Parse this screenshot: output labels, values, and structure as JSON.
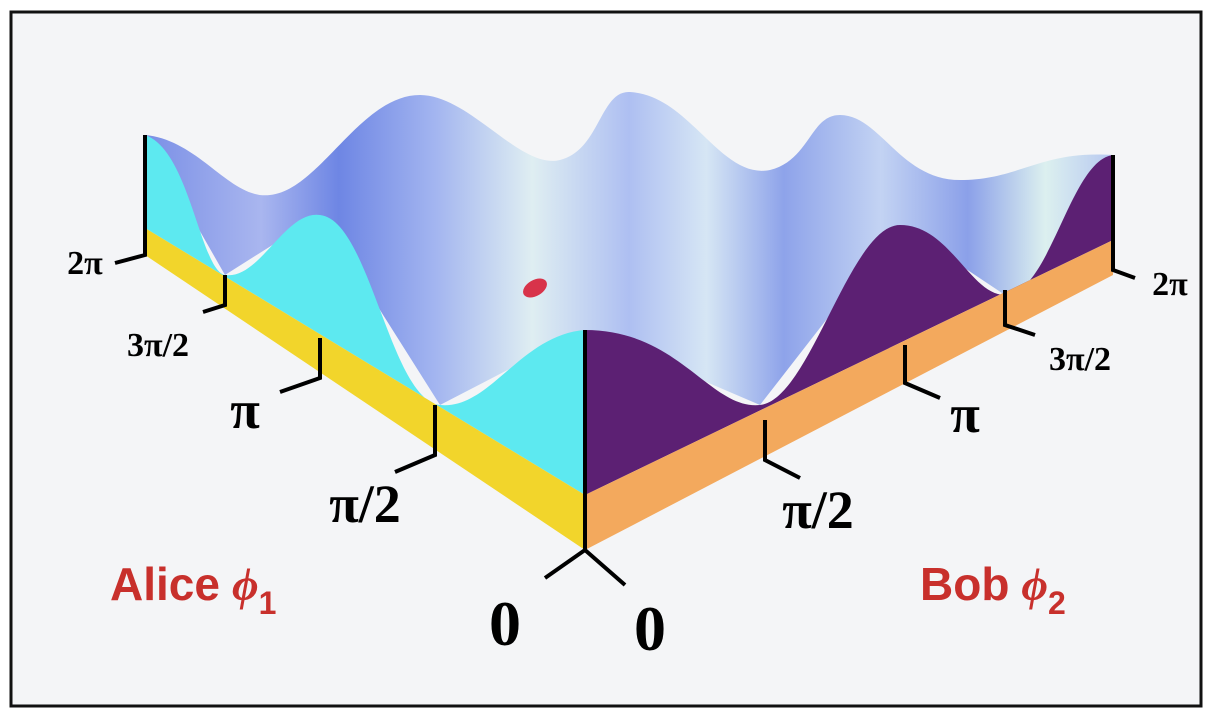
{
  "left_axis": {
    "name": "Alice",
    "symbol": "ϕ",
    "subscript": "1",
    "ticks": [
      "0",
      "π/2",
      "π",
      "3π/2",
      "2π"
    ]
  },
  "right_axis": {
    "name": "Bob",
    "symbol": "ϕ",
    "subscript": "2",
    "ticks": [
      "0",
      "π/2",
      "π",
      "3π/2",
      "2π"
    ]
  }
}
